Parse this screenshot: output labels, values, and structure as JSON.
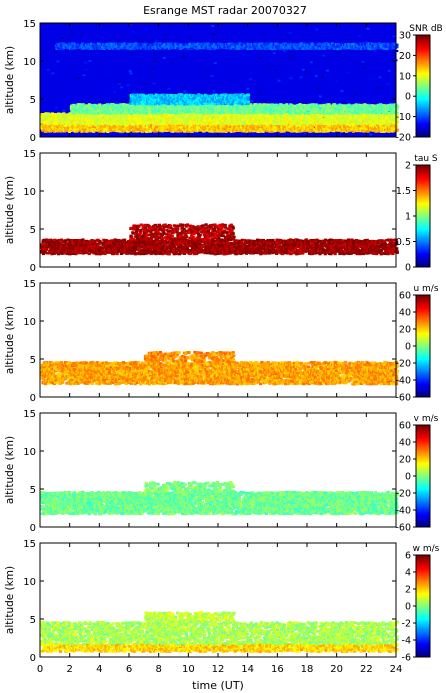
{
  "chart_data": {
    "type": "heatmap",
    "title": "Esrange MST radar 20070327",
    "xlabel": "time (UT)",
    "x_ticks": [
      "0",
      "2",
      "4",
      "6",
      "8",
      "10",
      "12",
      "14",
      "16",
      "18",
      "20",
      "22",
      "24"
    ],
    "xlim": [
      0,
      24
    ],
    "ylabel": "altitude (km)",
    "ylim": [
      0,
      15
    ],
    "y_ticks": [
      "0",
      "5",
      "10",
      "15"
    ],
    "panels": [
      {
        "quantity": "SNR",
        "colorbar_label": "SNR dB",
        "clim": [
          -20,
          30
        ],
        "colorbar_ticks": [
          "30",
          "20",
          "10",
          "0",
          "-10",
          "-20"
        ],
        "background": "coverage",
        "layers": [
          {
            "z0": 0.6,
            "z1": 1.6,
            "t0": 0,
            "t1": 24,
            "value": 14
          },
          {
            "z0": 1.6,
            "z1": 3.0,
            "t0": 0,
            "t1": 24,
            "value": 10
          },
          {
            "z0": 3.0,
            "z1": 4.2,
            "t0": 2,
            "t1": 24,
            "value": 4
          },
          {
            "z0": 4.2,
            "z1": 5.5,
            "t0": 6,
            "t1": 14,
            "value": -4
          },
          {
            "z0": 11.5,
            "z1": 12.2,
            "t0": 1,
            "t1": 24,
            "value": -10
          }
        ]
      },
      {
        "quantity": "tau",
        "colorbar_label": "tau S",
        "clim": [
          0,
          2
        ],
        "colorbar_ticks": [
          "2",
          "1.5",
          "1",
          "0.5",
          "0"
        ],
        "layers": [
          {
            "z0": 1.6,
            "z1": 3.5,
            "t0": 0,
            "t1": 24,
            "value": 1.95
          },
          {
            "z0": 3.5,
            "z1": 5.5,
            "t0": 6,
            "t1": 13,
            "value": 1.9
          }
        ]
      },
      {
        "quantity": "u",
        "colorbar_label": "u m/s",
        "clim": [
          -60,
          60
        ],
        "colorbar_ticks": [
          "60",
          "40",
          "20",
          "0",
          "-20",
          "-40",
          "-60"
        ],
        "layers": [
          {
            "z0": 1.6,
            "z1": 4.5,
            "t0": 0,
            "t1": 24,
            "value": 26
          },
          {
            "z0": 4.5,
            "z1": 5.8,
            "t0": 7,
            "t1": 13,
            "value": 28
          }
        ]
      },
      {
        "quantity": "v",
        "colorbar_label": "v m/s",
        "clim": [
          -60,
          60
        ],
        "colorbar_ticks": [
          "60",
          "40",
          "20",
          "0",
          "-20",
          "-40",
          "-60"
        ],
        "layers": [
          {
            "z0": 1.6,
            "z1": 4.5,
            "t0": 0,
            "t1": 24,
            "value": -2
          },
          {
            "z0": 4.5,
            "z1": 5.8,
            "t0": 7,
            "t1": 13,
            "value": 0
          }
        ]
      },
      {
        "quantity": "w",
        "colorbar_label": "w m/s",
        "clim": [
          -6,
          6
        ],
        "colorbar_ticks": [
          "6",
          "4",
          "2",
          "0",
          "-2",
          "-4",
          "-6"
        ],
        "layers": [
          {
            "z0": 0.6,
            "z1": 1.6,
            "t0": 0,
            "t1": 24,
            "value": 2
          },
          {
            "z0": 1.6,
            "z1": 4.5,
            "t0": 0,
            "t1": 24,
            "value": 0.5
          },
          {
            "z0": 4.5,
            "z1": 5.8,
            "t0": 7,
            "t1": 13,
            "value": 0.8
          }
        ]
      }
    ]
  }
}
